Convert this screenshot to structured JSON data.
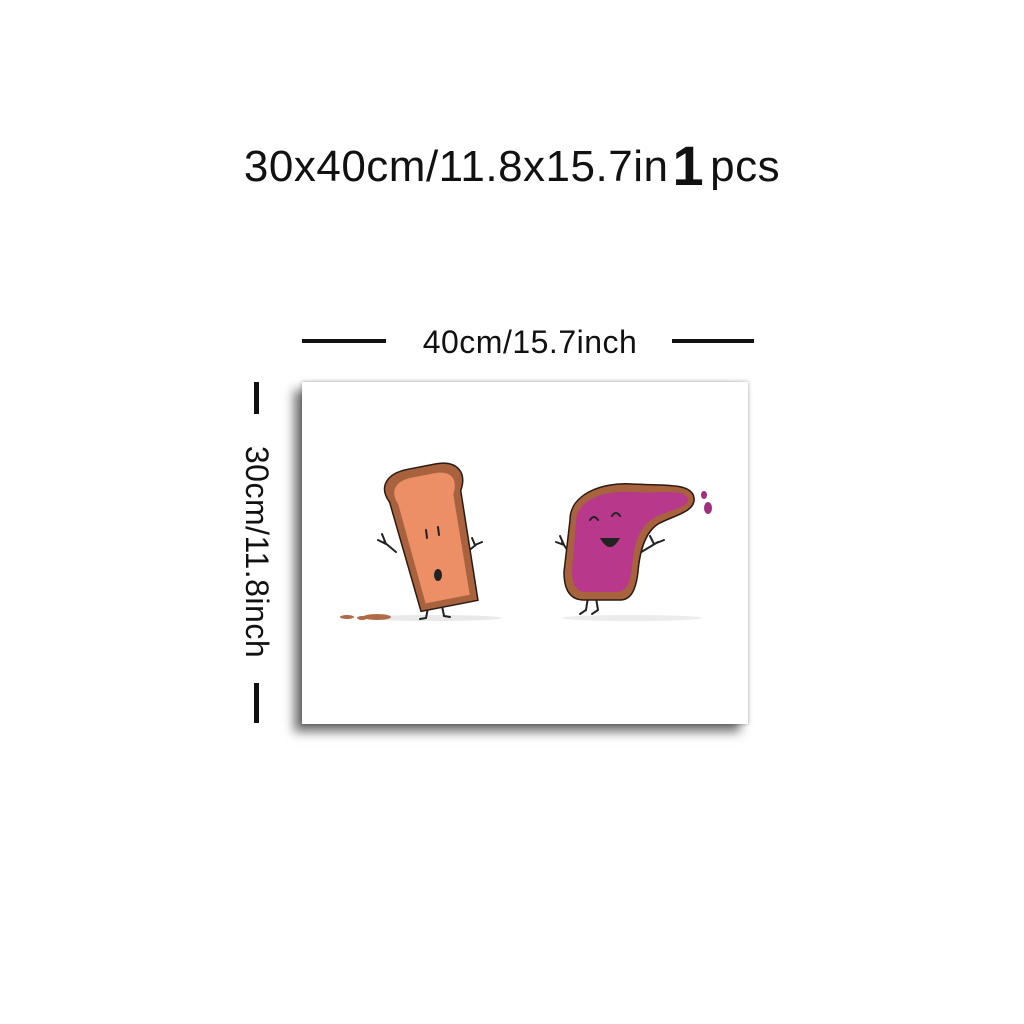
{
  "product": {
    "size_text": "30x40cm/11.8x15.7in",
    "quantity": "1",
    "quantity_unit": "pcs"
  },
  "dimensions": {
    "width_label": "40cm/15.7inch",
    "height_label": "30cm/11.8inch"
  },
  "artwork": {
    "characters": [
      "plain-toast-character-icon",
      "jam-toast-character-icon"
    ],
    "colors": {
      "toast_crust": "#a8623e",
      "toast_face": "#ec8e66",
      "jam": "#b8388c",
      "jam_drop": "#a0307e"
    }
  }
}
